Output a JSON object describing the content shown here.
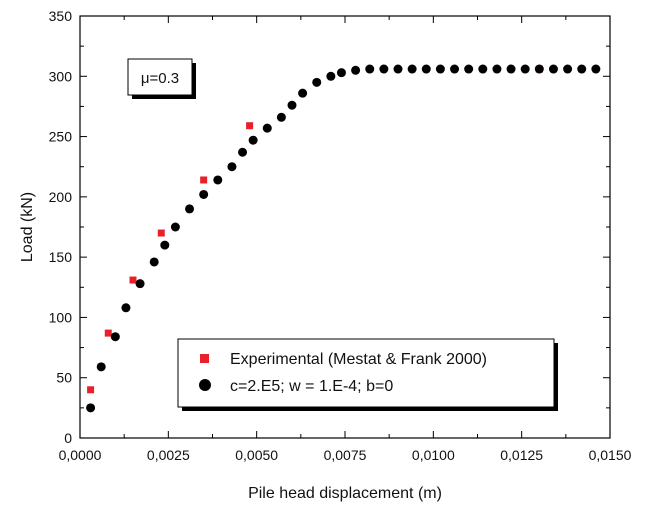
{
  "chart_data": {
    "type": "scatter",
    "xlabel": "Pile head displacement (m)",
    "ylabel": "Load (kN)",
    "xlim": [
      0,
      0.015
    ],
    "ylim": [
      0,
      350
    ],
    "x_ticks": [
      0,
      0.0025,
      0.005,
      0.0075,
      0.01,
      0.0125,
      0.015
    ],
    "x_tick_labels": [
      "0,0000",
      "0,0025",
      "0,0050",
      "0,0075",
      "0,0100",
      "0,0125",
      "0,0150"
    ],
    "y_ticks": [
      0,
      50,
      100,
      150,
      200,
      250,
      300,
      350
    ],
    "y_tick_labels": [
      "0",
      "50",
      "100",
      "150",
      "200",
      "250",
      "300",
      "350"
    ],
    "annotation": "μ=0.3",
    "legend_position": "bottom-center",
    "grid": false,
    "series": [
      {
        "name": "Experimental (Mestat & Frank 2000)",
        "marker": "square",
        "color": "#e8202a",
        "x": [
          0.0003,
          0.0008,
          0.0015,
          0.0023,
          0.0035,
          0.0048,
          0.013
        ],
        "y": [
          40,
          87,
          131,
          170,
          214,
          259,
          306
        ]
      },
      {
        "name": "c=2.E5; w = 1.E-4; b=0",
        "marker": "circle",
        "color": "#000000",
        "x": [
          0.0003,
          0.0006,
          0.001,
          0.0013,
          0.0017,
          0.0021,
          0.0024,
          0.0027,
          0.0031,
          0.0035,
          0.0039,
          0.0043,
          0.0046,
          0.0049,
          0.0053,
          0.0057,
          0.006,
          0.0063,
          0.0067,
          0.0071,
          0.0074,
          0.0078,
          0.0082,
          0.0086,
          0.009,
          0.0094,
          0.0098,
          0.0102,
          0.0106,
          0.011,
          0.0114,
          0.0118,
          0.0122,
          0.0126,
          0.013,
          0.0134,
          0.0138,
          0.0142,
          0.0146
        ],
        "y": [
          25,
          59,
          84,
          108,
          128,
          146,
          160,
          175,
          190,
          202,
          214,
          225,
          237,
          247,
          257,
          266,
          276,
          286,
          295,
          300,
          303,
          305,
          306,
          306,
          306,
          306,
          306,
          306,
          306,
          306,
          306,
          306,
          306,
          306,
          306,
          306,
          306,
          306,
          306
        ]
      }
    ]
  }
}
